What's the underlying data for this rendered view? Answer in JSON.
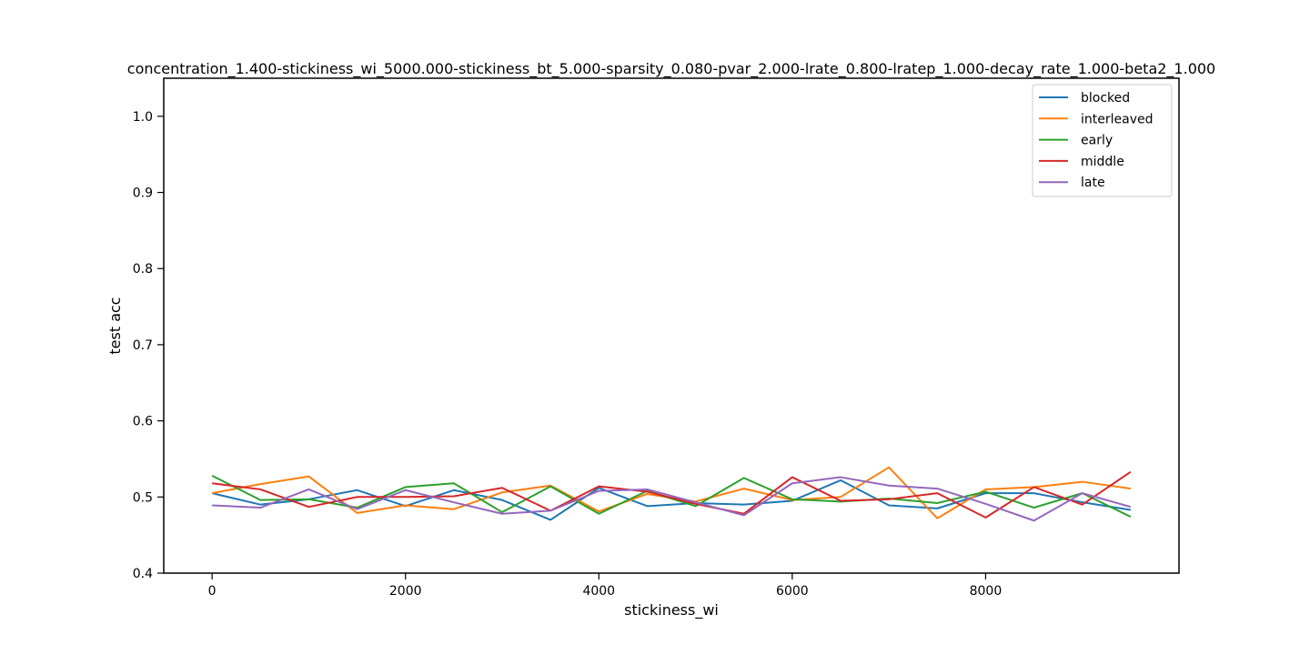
{
  "chart_data": {
    "type": "line",
    "title": "concentration_1.400-stickiness_wi_5000.000-stickiness_bt_5.000-sparsity_0.080-pvar_2.000-lrate_0.800-lratep_1.000-decay_rate_1.000-beta2_1.000",
    "xlabel": "stickiness_wi",
    "ylabel": "test acc",
    "xlim": [
      -500,
      10000
    ],
    "ylim": [
      0.4,
      1.05
    ],
    "xticks": [
      0,
      2000,
      4000,
      6000,
      8000
    ],
    "yticks": [
      0.4,
      0.5,
      0.6,
      0.7,
      0.8,
      0.9,
      1.0
    ],
    "xtick_labels": [
      "0",
      "2000",
      "4000",
      "6000",
      "8000"
    ],
    "ytick_labels": [
      "0.4",
      "0.5",
      "0.6",
      "0.7",
      "0.8",
      "0.9",
      "1.0"
    ],
    "grid": false,
    "legend_position": "top-right",
    "x": [
      0,
      500,
      1000,
      1500,
      2000,
      2500,
      3000,
      3500,
      4000,
      4500,
      5000,
      5500,
      6000,
      6500,
      7000,
      7500,
      8000,
      8500,
      9000,
      9500
    ],
    "series": [
      {
        "name": "blocked",
        "color": "#1f77b4",
        "values": [
          0.505,
          0.49,
          0.497,
          0.509,
          0.488,
          0.509,
          0.496,
          0.47,
          0.512,
          0.488,
          0.492,
          0.49,
          0.495,
          0.522,
          0.489,
          0.485,
          0.505,
          0.505,
          0.493,
          0.483
        ]
      },
      {
        "name": "interleaved",
        "color": "#ff7f0e",
        "values": [
          0.505,
          0.517,
          0.527,
          0.479,
          0.489,
          0.484,
          0.506,
          0.515,
          0.481,
          0.504,
          0.494,
          0.511,
          0.496,
          0.5,
          0.539,
          0.472,
          0.51,
          0.513,
          0.52,
          0.511
        ]
      },
      {
        "name": "early",
        "color": "#2ca02c",
        "values": [
          0.528,
          0.496,
          0.497,
          0.486,
          0.513,
          0.518,
          0.48,
          0.514,
          0.478,
          0.508,
          0.488,
          0.525,
          0.497,
          0.494,
          0.498,
          0.492,
          0.507,
          0.486,
          0.505,
          0.474
        ]
      },
      {
        "name": "middle",
        "color": "#d62728",
        "values": [
          0.518,
          0.51,
          0.487,
          0.5,
          0.5,
          0.501,
          0.512,
          0.482,
          0.514,
          0.507,
          0.491,
          0.478,
          0.526,
          0.495,
          0.497,
          0.505,
          0.473,
          0.513,
          0.49,
          0.533
        ]
      },
      {
        "name": "late",
        "color": "#9467bd",
        "values": [
          0.489,
          0.486,
          0.51,
          0.484,
          0.509,
          0.493,
          0.478,
          0.482,
          0.508,
          0.51,
          0.493,
          0.476,
          0.518,
          0.526,
          0.515,
          0.511,
          0.491,
          0.469,
          0.505,
          0.487
        ]
      }
    ]
  }
}
